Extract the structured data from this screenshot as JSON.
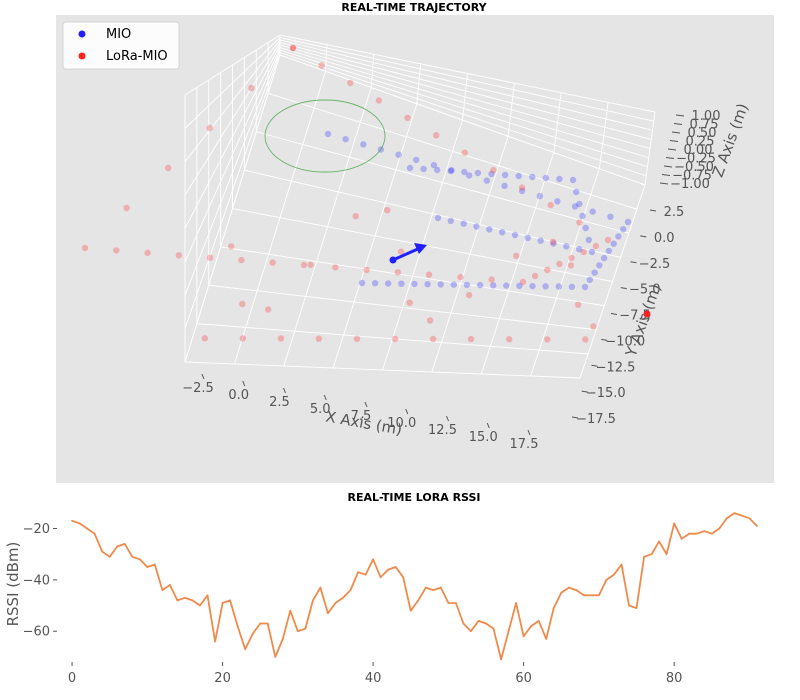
{
  "chart_data": [
    {
      "type": "scatter",
      "title": "REAL-TIME TRAJECTORY",
      "xlabel": "X Axis (m)",
      "ylabel": "Y Axis (m)",
      "zlabel": "Z Axis (m)",
      "x_ticks": [
        "−2.5",
        "0.0",
        "2.5",
        "5.0",
        "7.5",
        "10.0",
        "12.5",
        "15.0",
        "17.5"
      ],
      "y_ticks": [
        "2.5",
        "0.0",
        "−2.5",
        "−5.0",
        "−7.5",
        "−10.0",
        "−12.5",
        "−15.0",
        "−17.5"
      ],
      "z_ticks": [
        "1.00",
        "0.75",
        "0.50",
        "0.25",
        "0.00",
        "−0.25",
        "−0.50",
        "−0.75",
        "−1.00"
      ],
      "grid": true,
      "legend_position": "top-left",
      "series": [
        {
          "name": "MIO",
          "color": "#1f1fff"
        },
        {
          "name": "LoRa-MIO",
          "color": "#ff2020"
        }
      ]
    },
    {
      "type": "line",
      "title": "REAL-TIME LORA RSSI",
      "xlabel": "",
      "ylabel": "RSSI (dBm)",
      "xlim": [
        -2,
        93
      ],
      "ylim": [
        -72,
        -12
      ],
      "x_ticks": [
        0,
        20,
        40,
        60,
        80
      ],
      "y_ticks": [
        -20,
        -40,
        -60
      ],
      "grid": false,
      "color": "#f08a4b",
      "series": [
        {
          "name": "",
          "values": [
            -17,
            -18,
            -20,
            -22,
            -29,
            -31,
            -27,
            -26,
            -31,
            -32,
            -35,
            -34,
            -44,
            -42,
            -48,
            -47,
            -48,
            -50,
            -46,
            -64,
            -49,
            -48,
            -58,
            -67,
            -61,
            -57,
            -57,
            -70,
            -63,
            -52,
            -60,
            -59,
            -48,
            -43,
            -53,
            -49,
            -47,
            -44,
            -37,
            -38,
            -32,
            -39,
            -36,
            -35,
            -39,
            -52,
            -48,
            -43,
            -44,
            -43,
            -49,
            -49,
            -57,
            -60,
            -56,
            -57,
            -59,
            -71,
            -60,
            -49,
            -62,
            -58,
            -56,
            -63,
            -51,
            -45,
            -43,
            -44,
            -46,
            -46,
            -46,
            -40,
            -38,
            -34,
            -50,
            -51,
            -31,
            -30,
            -25,
            -30,
            -18,
            -24,
            -22,
            -22,
            -21,
            -22,
            -20,
            -16,
            -14,
            -15,
            -16,
            -19
          ]
        }
      ]
    }
  ]
}
